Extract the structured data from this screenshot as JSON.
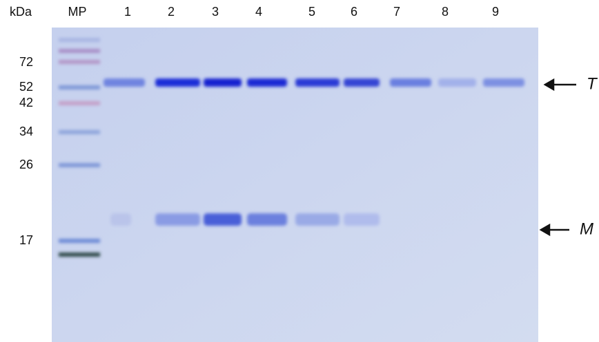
{
  "header": {
    "unit": "kDa",
    "marker_lane": "MP",
    "lanes": [
      "1",
      "2",
      "3",
      "4",
      "5",
      "6",
      "7",
      "8",
      "9"
    ]
  },
  "markers": [
    "72",
    "52",
    "42",
    "34",
    "26",
    "17"
  ],
  "arrows": [
    {
      "label": "T"
    },
    {
      "label": "M"
    }
  ]
}
